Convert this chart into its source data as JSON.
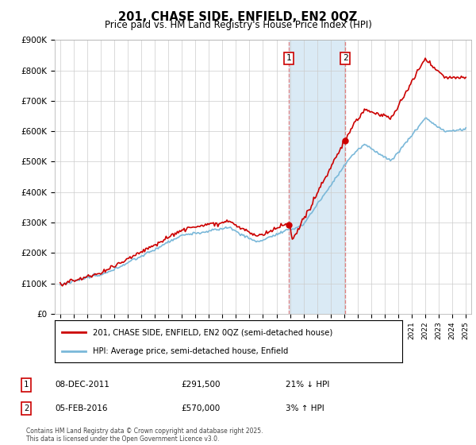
{
  "title": "201, CHASE SIDE, ENFIELD, EN2 0QZ",
  "subtitle": "Price paid vs. HM Land Registry's House Price Index (HPI)",
  "ylim": [
    0,
    900000
  ],
  "yticks": [
    0,
    100000,
    200000,
    300000,
    400000,
    500000,
    600000,
    700000,
    800000,
    900000
  ],
  "ytick_labels": [
    "£0",
    "£100K",
    "£200K",
    "£300K",
    "£400K",
    "£500K",
    "£600K",
    "£700K",
    "£800K",
    "£900K"
  ],
  "hpi_color": "#7ab8d9",
  "price_color": "#cc0000",
  "shading_color": "#daeaf5",
  "vline_color": "#e08080",
  "purchase1_date": "08-DEC-2011",
  "purchase1_price": 291500,
  "purchase1_hpi_txt": "21% ↓ HPI",
  "purchase2_date": "05-FEB-2016",
  "purchase2_price": 570000,
  "purchase2_hpi_txt": "3% ↑ HPI",
  "legend1": "201, CHASE SIDE, ENFIELD, EN2 0QZ (semi-detached house)",
  "legend2": "HPI: Average price, semi-detached house, Enfield",
  "footer": "Contains HM Land Registry data © Crown copyright and database right 2025.\nThis data is licensed under the Open Government Licence v3.0.",
  "background_color": "#ffffff",
  "grid_color": "#cccccc",
  "t1": 2011.917,
  "t2": 2016.083,
  "xlim_left": 1994.6,
  "xlim_right": 2025.4
}
